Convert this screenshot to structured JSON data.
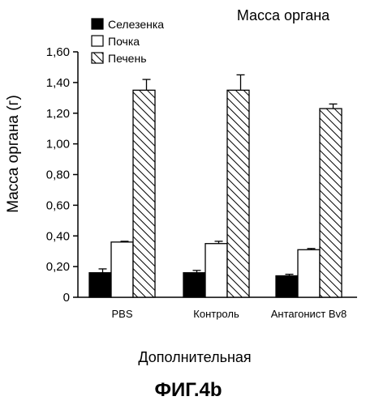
{
  "chart_data": {
    "type": "bar",
    "title": "Масса органа",
    "ylabel": "Масса органа (г)",
    "xlabel": "",
    "ylim": [
      0,
      1.6
    ],
    "yticks": [
      "0",
      "0,20",
      "0,40",
      "0,60",
      "0,80",
      "1,00",
      "1,20",
      "1,40",
      "1,60"
    ],
    "categories": [
      "PBS",
      "Контроль",
      "Антагонист Bv8"
    ],
    "series": [
      {
        "name": "Селезенка",
        "fill": "solid",
        "values": [
          0.16,
          0.16,
          0.14
        ],
        "errors": [
          0.025,
          0.015,
          0.01
        ]
      },
      {
        "name": "Почка",
        "fill": "white",
        "values": [
          0.36,
          0.35,
          0.31
        ],
        "errors": [
          0.005,
          0.015,
          0.008
        ]
      },
      {
        "name": "Печень",
        "fill": "hatch",
        "values": [
          1.35,
          1.35,
          1.23
        ],
        "errors": [
          0.07,
          0.1,
          0.03
        ]
      }
    ],
    "legend_position": "top-left",
    "grid": false
  },
  "bottom_note": "Дополнительная",
  "figure_label": "ФИГ.4b",
  "colors": {
    "ink": "#000000",
    "paper": "#ffffff"
  }
}
